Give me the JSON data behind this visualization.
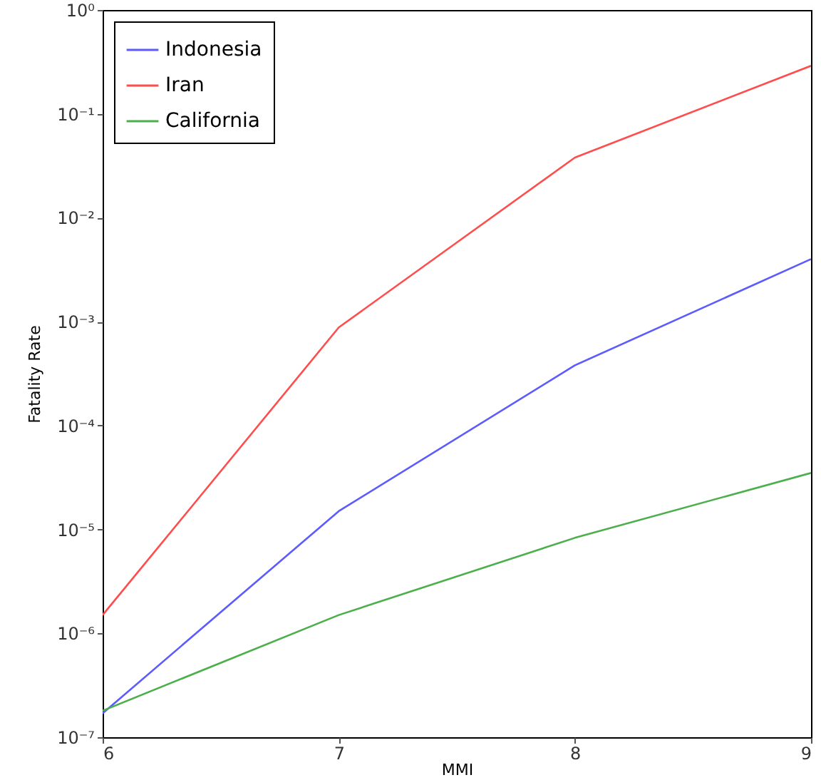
{
  "chart_data": {
    "type": "line",
    "xlabel": "MMI",
    "ylabel": "Fatality Rate",
    "x": [
      6,
      7,
      8,
      9
    ],
    "series": [
      {
        "name": "Indonesia",
        "color": "#5b5bff",
        "values": [
          1.7e-07,
          1.5e-05,
          0.00038,
          0.004
        ]
      },
      {
        "name": "Iran",
        "color": "#ff4d4d",
        "values": [
          1.5e-06,
          0.00088,
          0.038,
          0.29
        ]
      },
      {
        "name": "California",
        "color": "#4caf4c",
        "values": [
          1.8e-07,
          1.5e-06,
          8.3e-06,
          3.5e-05
        ]
      }
    ],
    "log": "y",
    "xlim": [
      6,
      9
    ],
    "ylim": [
      1e-07,
      1
    ],
    "xticks": [
      6,
      7,
      8,
      9
    ],
    "yticks": [
      {
        "value": 1e-07,
        "label": "10⁻⁷"
      },
      {
        "value": 1e-06,
        "label": "10⁻⁶"
      },
      {
        "value": 1e-05,
        "label": "10⁻⁵"
      },
      {
        "value": 0.0001,
        "label": "10⁻⁴"
      },
      {
        "value": 0.001,
        "label": "10⁻³"
      },
      {
        "value": 0.01,
        "label": "10⁻²"
      },
      {
        "value": 0.1,
        "label": "10⁻¹"
      },
      {
        "value": 1,
        "label": "10⁰"
      }
    ],
    "grid": false,
    "legend": "top left",
    "marker": "none",
    "line_style": "solid"
  }
}
